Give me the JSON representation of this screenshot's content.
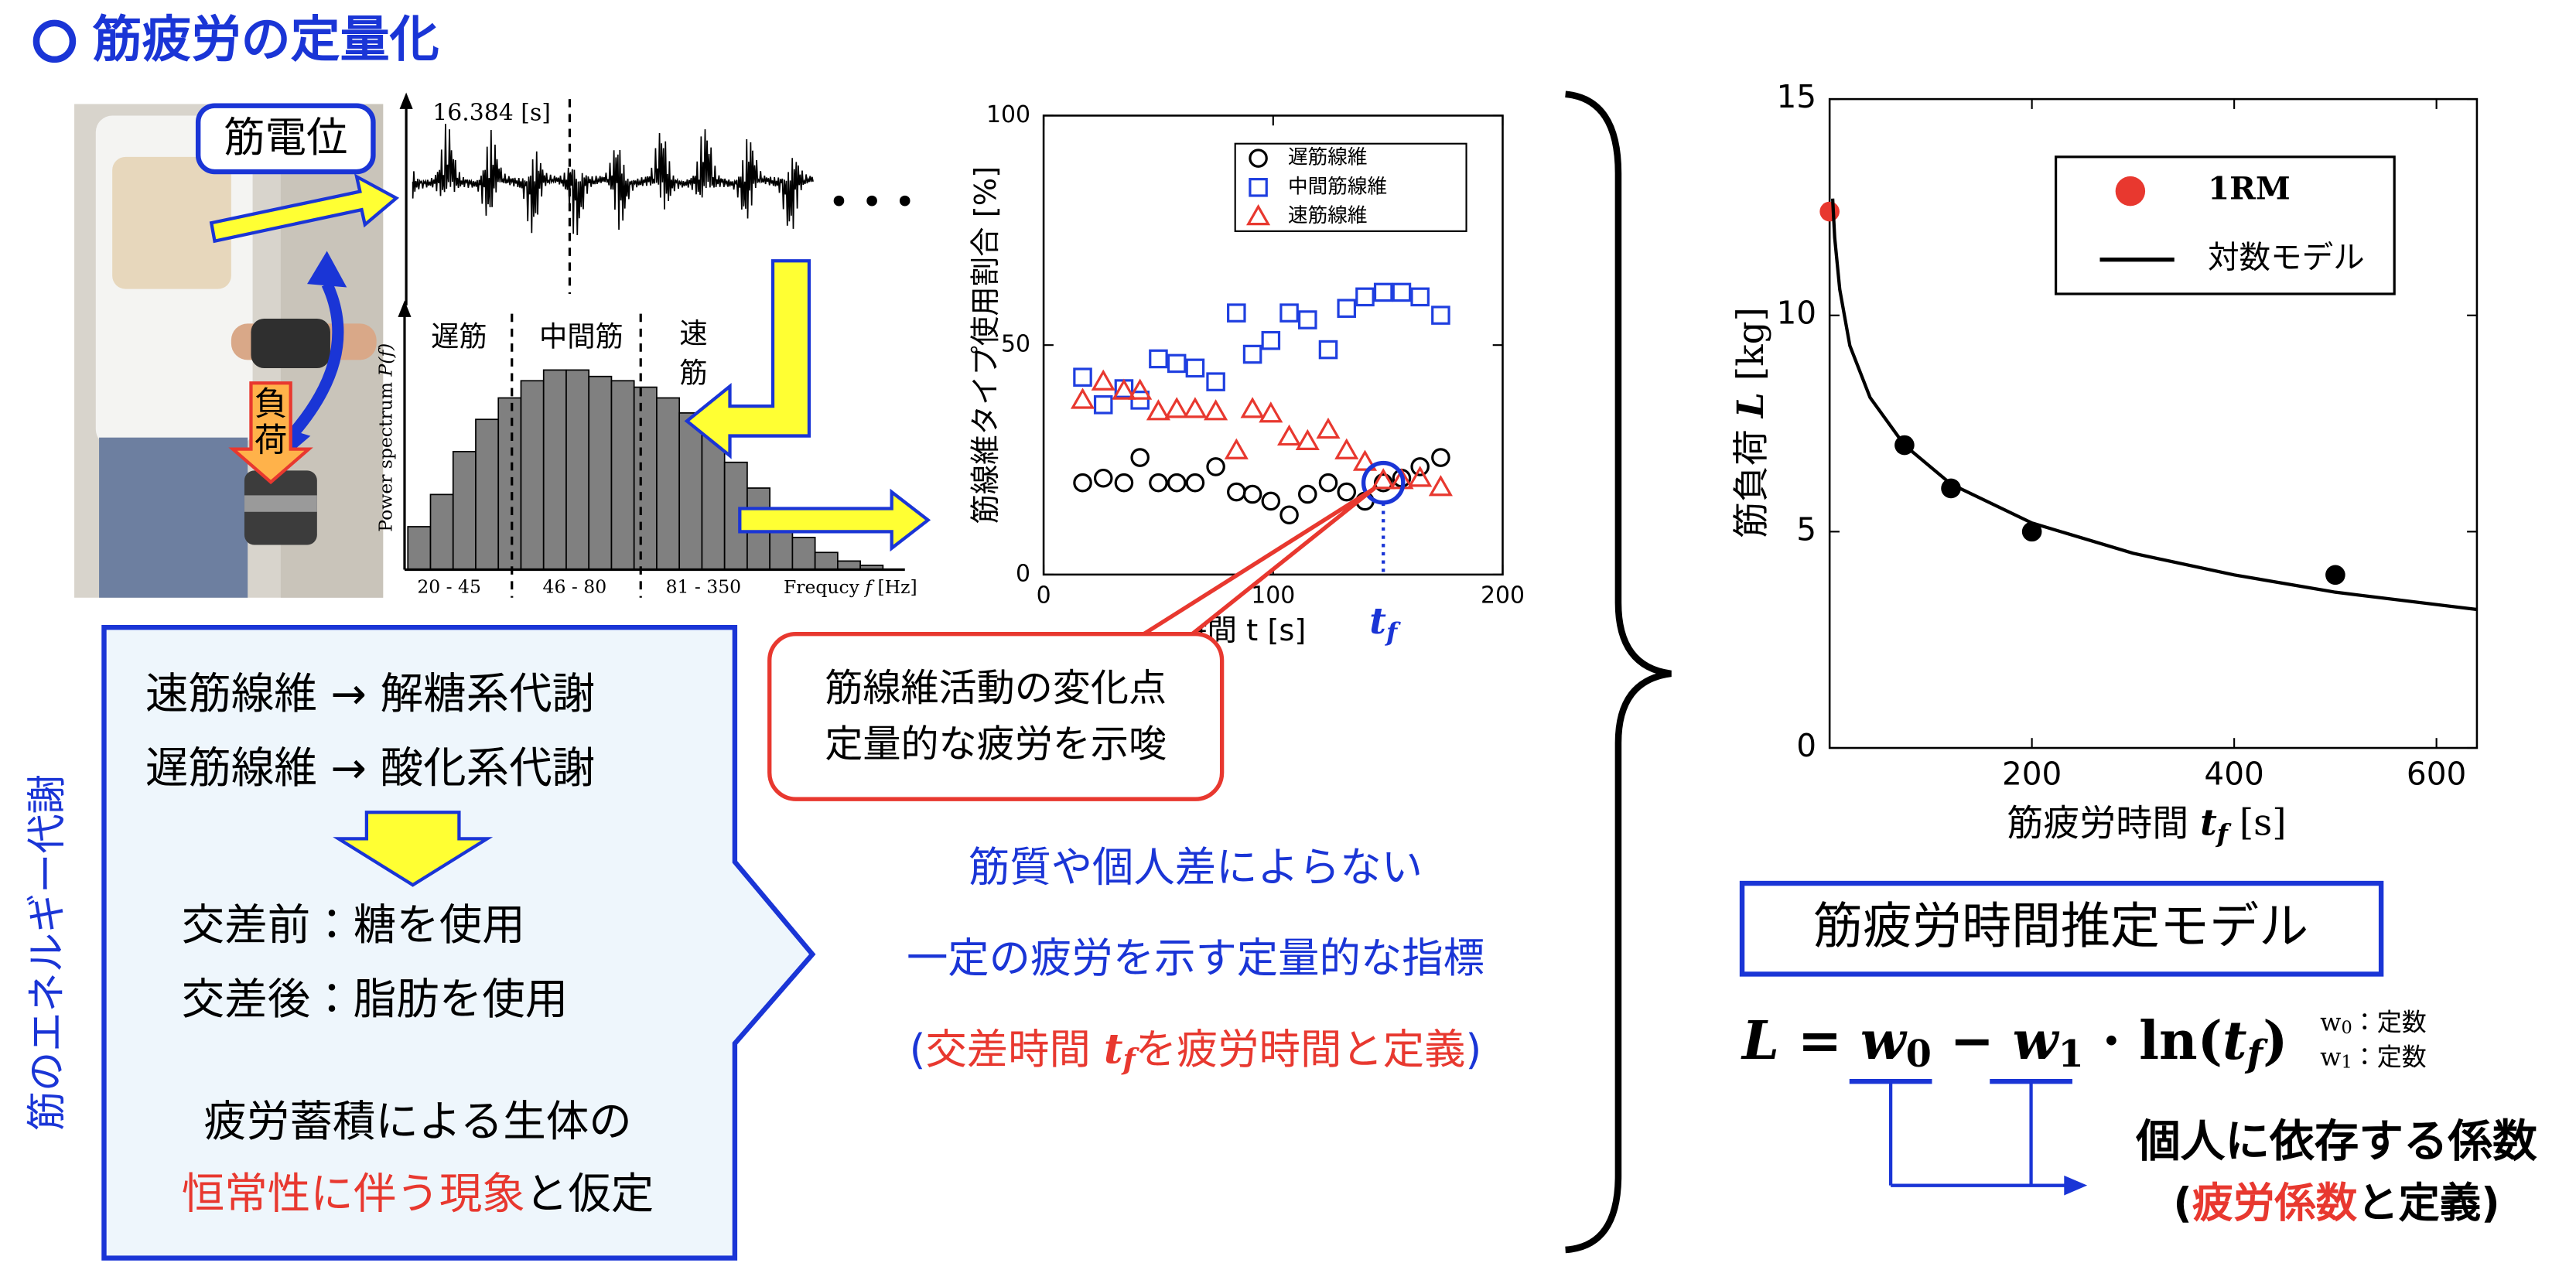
{
  "title": "筋疲労の定量化",
  "photo": {
    "emg_label": "筋電位",
    "load_label": [
      "負",
      "荷"
    ]
  },
  "emg": {
    "time_label": "16.384 [s]",
    "ellipsis": "• • •"
  },
  "chart_data": [
    {
      "type": "bar",
      "band_labels": [
        "遅筋",
        "中間筋",
        "速",
        "筋"
      ],
      "range_labels": [
        "20 - 45",
        "46 - 80",
        "81 - 350"
      ],
      "ylabel": [
        "Power spectrum ",
        "P(f)"
      ],
      "xlabel": [
        "Frequcy ",
        "f",
        " [Hz]"
      ],
      "categories": [
        null,
        null,
        null,
        null,
        null,
        null,
        null,
        null,
        null,
        null,
        null,
        null,
        null,
        null,
        null,
        null,
        null,
        null,
        null,
        null,
        null
      ],
      "values": [
        20,
        35,
        55,
        70,
        80,
        88,
        93,
        93,
        90,
        88,
        85,
        80,
        73,
        63,
        50,
        38,
        25,
        15,
        8,
        4,
        2
      ],
      "color": "#808080",
      "ylim": [
        0,
        100
      ]
    },
    {
      "type": "scatter",
      "ylabel": "筋線維タイプ使用割合 [%]",
      "xlabel": "時間 t [s]",
      "x": [
        17,
        26,
        35,
        42,
        50,
        58,
        66,
        75,
        84,
        91,
        99,
        107,
        115,
        124,
        132,
        140,
        148,
        156,
        164,
        173
      ],
      "series": [
        {
          "name": "遅筋線維",
          "color": "#000000",
          "marker": "circle",
          "values": [
            20,
            21,
            20,
            25.5,
            20,
            20,
            20,
            23.5,
            18,
            17.5,
            16,
            13,
            17.5,
            20,
            18,
            16,
            20,
            21,
            23.5,
            25.5
          ]
        },
        {
          "name": "中間筋線維",
          "color": "#1f3fe0",
          "marker": "square",
          "values": [
            43,
            37,
            40.5,
            38,
            47,
            46,
            45,
            42,
            57,
            48,
            51,
            57,
            55.5,
            49,
            58,
            60.5,
            61.5,
            61.5,
            60.5,
            56.5
          ]
        },
        {
          "name": "速筋線維",
          "color": "#e8382f",
          "marker": "triangle",
          "values": [
            38,
            42,
            40,
            40,
            35.5,
            36,
            36,
            35.5,
            27,
            36,
            35,
            30,
            29,
            31.5,
            27,
            24.5,
            20.5,
            20.5,
            21,
            19
          ]
        }
      ],
      "xlim": [
        0,
        200
      ],
      "xticks": [
        0,
        100,
        200
      ],
      "ylim": [
        0,
        100
      ],
      "yticks": [
        0,
        50,
        100
      ],
      "legend": "upper right",
      "annotation": {
        "text": [
          "t",
          "f"
        ],
        "x": 148,
        "y": 20
      }
    },
    {
      "type": "scatter",
      "ylabel": [
        "筋負荷 ",
        "L",
        " [kg]"
      ],
      "xlabel": [
        "筋疲労時間 ",
        "t",
        "f",
        " [s]"
      ],
      "series": [
        {
          "name": "1RM",
          "color": "#e8382f",
          "marker": "dot",
          "x": [
            0
          ],
          "values": [
            12.4
          ]
        },
        {
          "color": "#000000",
          "marker": "dot",
          "x": [
            74,
            120,
            200,
            500
          ],
          "values": [
            7,
            6,
            5,
            4
          ]
        },
        {
          "name": "対数モデル",
          "type": "line",
          "color": "#000000",
          "x": [
            3,
            5,
            10,
            20,
            40,
            74,
            120,
            200,
            300,
            400,
            500,
            640
          ],
          "values": [
            12.7,
            11.8,
            10.6,
            9.3,
            8.1,
            7.0,
            6.1,
            5.2,
            4.5,
            4.0,
            3.6,
            3.2
          ]
        }
      ],
      "xlim": [
        0,
        640
      ],
      "xticks": [
        200,
        400,
        600
      ],
      "ylim": [
        0,
        15
      ],
      "yticks": [
        0,
        5,
        10,
        15
      ],
      "legend": "upper right"
    }
  ],
  "callout": [
    "筋線維活動の変化点",
    "定量的な疲労を示唆"
  ],
  "left_box": {
    "side_label": "筋のエネルギー代謝",
    "lines": [
      "速筋線維 → 解糖系代謝",
      "遅筋線維 → 酸化系代謝",
      "交差前：糖を使用",
      "交差後：脂肪を使用",
      "疲労蓄積による生体の"
    ],
    "last_line": [
      "恒常性に伴う現象",
      "と仮定"
    ]
  },
  "conclusion": {
    "lines": [
      "筋質や個人差によらない",
      "一定の疲労を示す定量的な指標"
    ],
    "definition": [
      "(",
      "交差時間 ",
      "t",
      "f",
      "を疲労時間と定義",
      ")"
    ]
  },
  "model": {
    "title": "筋疲労時間推定モデル",
    "formula": [
      "L",
      " = ",
      "w",
      "0",
      " − ",
      "w",
      "1",
      " · ln(",
      "t",
      "f",
      ")"
    ],
    "notes": [
      [
        "w",
        "0",
        "：定数"
      ],
      [
        "w",
        "1",
        "：定数"
      ]
    ],
    "coefficient": "個人に依存する係数",
    "coefficient_def": [
      "(",
      "疲労係数",
      "と定義",
      ")"
    ]
  }
}
